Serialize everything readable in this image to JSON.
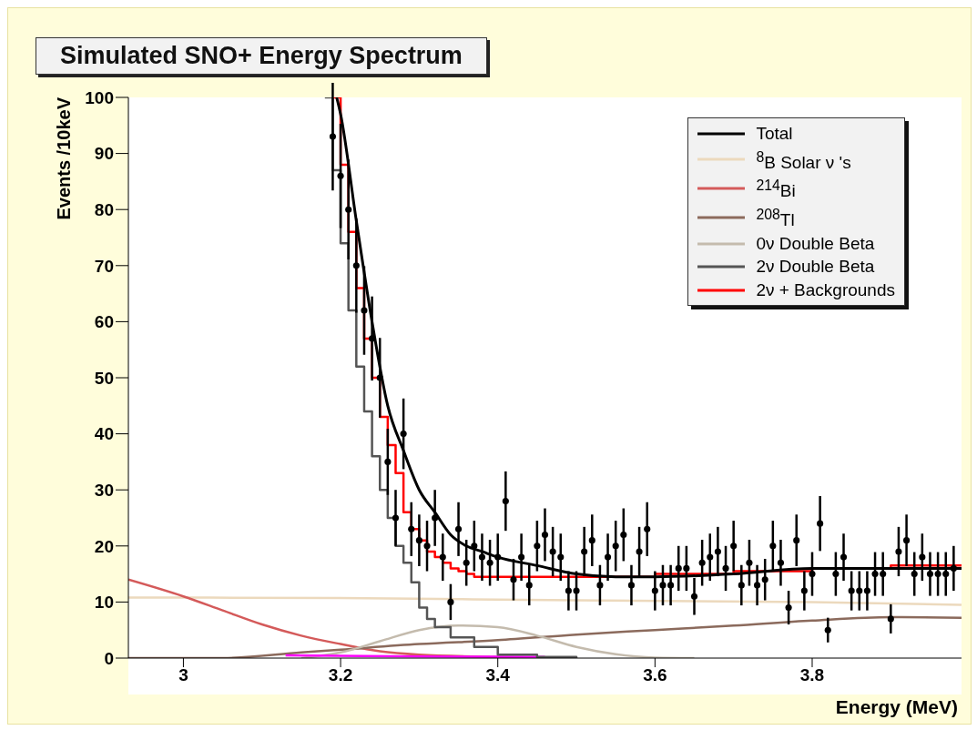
{
  "chart_data": {
    "type": "line",
    "title": "Simulated SNO+ Energy Spectrum",
    "xlabel": "Energy (MeV)",
    "ylabel": "Events /10keV",
    "xlim": [
      2.93,
      3.99
    ],
    "xticks": [
      3,
      3.2,
      3.4,
      3.6,
      3.8
    ],
    "ylim": [
      0,
      100
    ],
    "yticks": [
      0,
      10,
      20,
      30,
      40,
      50,
      60,
      70,
      80,
      90,
      100
    ],
    "legend": "top right",
    "series": [
      {
        "name": "$^{8}$B Solar ν 's",
        "color": "#ecd9bd",
        "x": [
          2.93,
          3.2,
          3.5,
          3.8,
          3.99
        ],
        "values": [
          10.8,
          10.7,
          10.3,
          10,
          9.5
        ]
      },
      {
        "name": "$^{214}$Bi",
        "color": "#d45a5a",
        "x": [
          2.93,
          3.0,
          3.05,
          3.1,
          3.15,
          3.2,
          3.25,
          3.3,
          3.4,
          3.5
        ],
        "values": [
          14,
          11,
          8.5,
          6,
          4,
          2.5,
          1.2,
          0.6,
          0.2,
          0
        ]
      },
      {
        "name": "$^{208}$Tl",
        "color": "#8b6a5c",
        "x": [
          2.93,
          3.05,
          3.15,
          3.2,
          3.3,
          3.4,
          3.5,
          3.6,
          3.7,
          3.8,
          3.9,
          3.99
        ],
        "values": [
          0,
          0,
          1,
          1.5,
          2.5,
          3.2,
          4.2,
          5,
          5.8,
          6.7,
          7.3,
          7.2
        ]
      },
      {
        "name": "0ν Double Beta",
        "color": "#c4bbad",
        "x": [
          3.15,
          3.2,
          3.25,
          3.3,
          3.35,
          3.4,
          3.45,
          3.5,
          3.55,
          3.6,
          3.65
        ],
        "values": [
          0,
          1,
          3,
          5,
          5.8,
          5.5,
          4,
          2,
          0.7,
          0.1,
          0
        ]
      },
      {
        "color": "#ff00ff",
        "x": [
          3.13,
          3.3,
          3.46
        ],
        "values": [
          0.5,
          0.3,
          0.2
        ]
      },
      {
        "name": "2ν Double Beta",
        "type": "step",
        "color": "#555555",
        "x": [
          3.18,
          3.19,
          3.2,
          3.21,
          3.22,
          3.23,
          3.24,
          3.25,
          3.26,
          3.27,
          3.28,
          3.29,
          3.3,
          3.31,
          3.32,
          3.34,
          3.37,
          3.4,
          3.45,
          3.5
        ],
        "values": [
          100,
          87,
          74,
          62,
          52,
          44,
          36,
          30,
          25,
          20,
          17,
          13.5,
          9,
          7,
          5.5,
          3.7,
          2,
          0.6,
          0.2,
          0
        ]
      },
      {
        "name": "2ν + Backgrounds",
        "type": "step",
        "color": "#ff0000",
        "x": [
          3.19,
          3.2,
          3.21,
          3.22,
          3.23,
          3.24,
          3.25,
          3.26,
          3.27,
          3.28,
          3.29,
          3.3,
          3.31,
          3.32,
          3.33,
          3.34,
          3.35,
          3.36,
          3.37,
          3.6,
          3.7,
          3.8,
          3.9,
          3.99
        ],
        "values": [
          100,
          88,
          76,
          66,
          57,
          50,
          43,
          38,
          33,
          26,
          23,
          21,
          19,
          18,
          17,
          16,
          15.5,
          15,
          14.5,
          15,
          15.5,
          16,
          16.5,
          16.5
        ]
      },
      {
        "name": "Total",
        "color": "#000000",
        "x": [
          3.195,
          3.2,
          3.22,
          3.24,
          3.26,
          3.28,
          3.3,
          3.32,
          3.34,
          3.36,
          3.38,
          3.4,
          3.45,
          3.5,
          3.55,
          3.6,
          3.7,
          3.8,
          3.9,
          3.99
        ],
        "values": [
          100,
          97,
          78,
          60,
          45,
          37,
          30,
          26,
          22,
          20,
          19,
          18,
          16.5,
          15,
          14.5,
          14.5,
          15,
          16,
          16,
          16
        ]
      },
      {
        "type": "scatter",
        "color": "#000000",
        "marker": "circle",
        "x": [
          3.19,
          3.2,
          3.21,
          3.22,
          3.23,
          3.24,
          3.25,
          3.26,
          3.27,
          3.28,
          3.29,
          3.3,
          3.31,
          3.32,
          3.33,
          3.34,
          3.35,
          3.36,
          3.37,
          3.38,
          3.39,
          3.4,
          3.41,
          3.42,
          3.43,
          3.44,
          3.45,
          3.46,
          3.47,
          3.48,
          3.49,
          3.5,
          3.51,
          3.52,
          3.53,
          3.54,
          3.55,
          3.56,
          3.57,
          3.58,
          3.59,
          3.6,
          3.61,
          3.62,
          3.63,
          3.64,
          3.65,
          3.66,
          3.67,
          3.68,
          3.69,
          3.7,
          3.71,
          3.72,
          3.73,
          3.74,
          3.75,
          3.76,
          3.77,
          3.78,
          3.79,
          3.8,
          3.81,
          3.82,
          3.83,
          3.84,
          3.85,
          3.86,
          3.87,
          3.88,
          3.89,
          3.9,
          3.91,
          3.92,
          3.93,
          3.94,
          3.95,
          3.96,
          3.97,
          3.98
        ],
        "values": [
          93,
          86,
          80,
          70,
          62,
          57,
          50,
          35,
          25,
          40,
          23,
          21,
          20,
          25,
          18,
          10,
          23,
          17,
          20,
          18,
          17,
          18,
          28,
          14,
          18,
          13,
          20,
          22,
          19,
          18,
          12,
          12,
          19,
          21,
          13,
          18,
          20,
          22,
          13,
          19,
          23,
          12,
          13,
          13,
          16,
          16,
          11,
          17,
          18,
          19,
          16,
          20,
          13,
          17,
          13,
          14,
          20,
          17,
          9,
          21,
          12,
          15,
          24,
          5,
          15,
          18,
          12,
          12,
          12,
          15,
          15,
          7,
          19,
          21,
          15,
          18,
          15,
          15,
          15,
          16
        ],
        "errors": [
          9.6,
          9.3,
          8.9,
          8.4,
          7.9,
          7.5,
          7.1,
          5.9,
          5,
          6.3,
          4.8,
          4.6,
          4.5,
          5,
          4.2,
          3.2,
          4.8,
          4.1,
          4.5,
          4.2,
          4.1,
          4.2,
          5.3,
          3.7,
          4.2,
          3.6,
          4.5,
          4.7,
          4.4,
          4.2,
          3.5,
          3.5,
          4.4,
          4.6,
          3.6,
          4.2,
          4.5,
          4.7,
          3.6,
          4.4,
          4.8,
          3.5,
          3.6,
          3.6,
          4,
          4,
          3.3,
          4.1,
          4.2,
          4.4,
          4,
          4.5,
          3.6,
          4.1,
          3.6,
          3.7,
          4.5,
          4.1,
          3,
          4.6,
          3.5,
          3.9,
          4.9,
          2.2,
          3.9,
          4.2,
          3.5,
          3.5,
          3.5,
          3.9,
          3.9,
          2.6,
          4.4,
          4.6,
          3.9,
          4.2,
          3.9,
          3.9,
          3.9,
          4
        ]
      }
    ]
  }
}
